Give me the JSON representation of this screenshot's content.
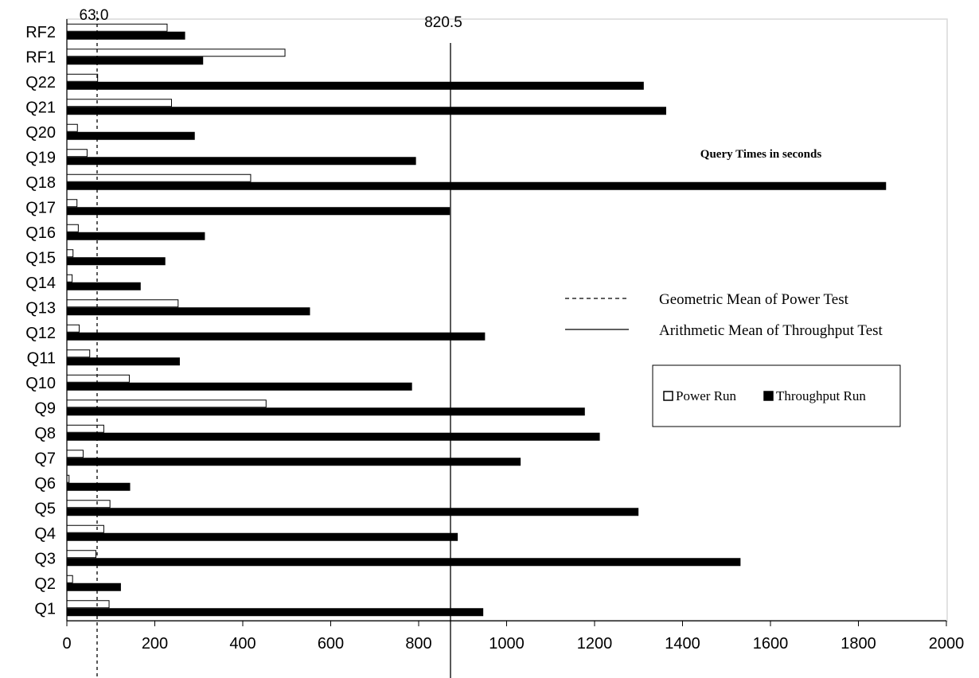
{
  "chart_data": {
    "type": "bar",
    "orientation": "horizontal",
    "title": "",
    "annotation_text": "Query Times in seconds",
    "xlabel": "",
    "ylabel": "",
    "xlim": [
      0,
      2000
    ],
    "x_ticks": [
      "0",
      "200",
      "400",
      "600",
      "800",
      "1000",
      "1200",
      "1400",
      "1600",
      "1800",
      "2000"
    ],
    "categories": [
      "Q1",
      "Q2",
      "Q3",
      "Q4",
      "Q5",
      "Q6",
      "Q7",
      "Q8",
      "Q9",
      "Q10",
      "Q11",
      "Q12",
      "Q13",
      "Q14",
      "Q15",
      "Q16",
      "Q17",
      "Q18",
      "Q19",
      "Q20",
      "Q21",
      "Q22",
      "RF1",
      "RF2"
    ],
    "series": [
      {
        "name": "Power Run",
        "color": "#ffffff",
        "values": [
          96,
          13,
          66,
          84,
          98,
          5,
          37,
          84,
          453,
          142,
          52,
          28,
          253,
          12,
          14,
          26,
          23,
          418,
          46,
          24,
          238,
          70,
          496,
          228
        ]
      },
      {
        "name": "Throughput Run",
        "color": "#000000",
        "values": [
          946,
          122,
          1531,
          888,
          1299,
          143,
          1031,
          1211,
          1177,
          784,
          256,
          950,
          552,
          167,
          223,
          313,
          870,
          1862,
          793,
          290,
          1362,
          1311,
          309,
          268
        ]
      }
    ],
    "reference_lines": [
      {
        "label": "63.0",
        "value": 63.0,
        "style": "dashed",
        "legend": "Geometric Mean of Power Test"
      },
      {
        "label": "820.5",
        "value": 820.5,
        "style": "solid",
        "legend": "Arithmetic Mean of Throughput Test"
      }
    ],
    "grid": false,
    "legend_position": "right"
  }
}
